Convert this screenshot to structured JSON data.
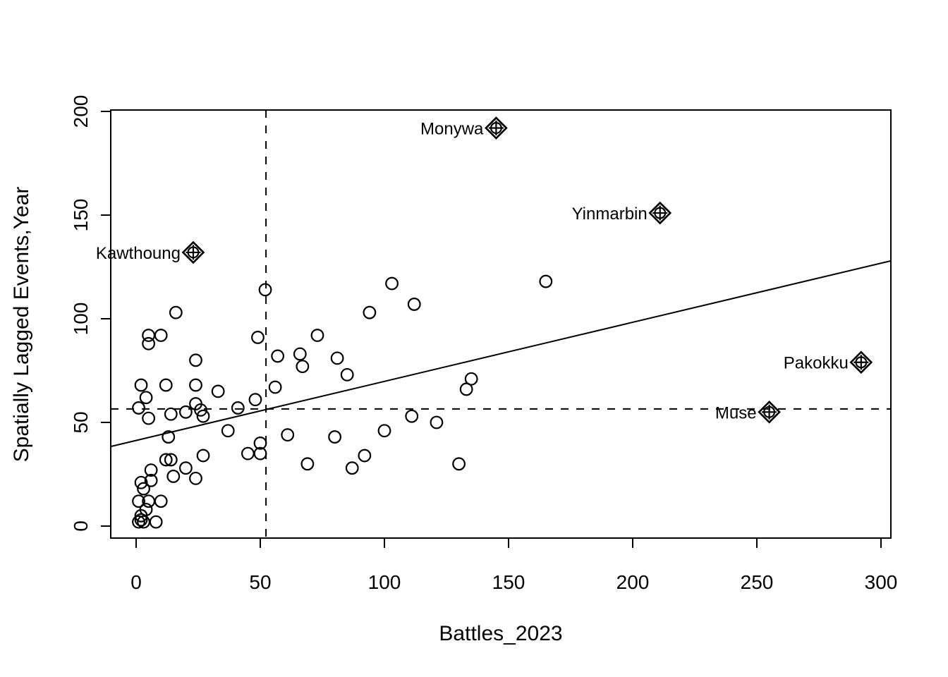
{
  "chart_data": {
    "type": "scatter",
    "title": "",
    "xlabel": "Battles_2023",
    "ylabel": "Spatially Lagged Events,Year",
    "xlim": [
      -10.2,
      304
    ],
    "ylim": [
      -5.8,
      200.7
    ],
    "x_ticks": [
      0,
      50,
      100,
      150,
      200,
      250,
      300
    ],
    "y_ticks": [
      0,
      50,
      100,
      150,
      200
    ],
    "grid": false,
    "legend": "none",
    "mean_x": 52.3,
    "mean_y": 56.5,
    "mean_line_style": "dashed",
    "regression_line": {
      "slope": 0.285,
      "intercept": 41.3,
      "style": "solid"
    },
    "marker": "open-circle",
    "influence_marker": "diamond-circle-plus",
    "colors": {
      "foreground": "#000000",
      "background": "#ffffff"
    },
    "points": [
      [
        16,
        103
      ],
      [
        5,
        92
      ],
      [
        5,
        88
      ],
      [
        10,
        92
      ],
      [
        24,
        80
      ],
      [
        49,
        91
      ],
      [
        52,
        114
      ],
      [
        2,
        68
      ],
      [
        12,
        68
      ],
      [
        24,
        68
      ],
      [
        33,
        65
      ],
      [
        56,
        67
      ],
      [
        4,
        62
      ],
      [
        48,
        61
      ],
      [
        1,
        57
      ],
      [
        41,
        57
      ],
      [
        20,
        55
      ],
      [
        24,
        59
      ],
      [
        26,
        56
      ],
      [
        27,
        53
      ],
      [
        14,
        54
      ],
      [
        5,
        52
      ],
      [
        57,
        82
      ],
      [
        66,
        83
      ],
      [
        67,
        77
      ],
      [
        81,
        81
      ],
      [
        85,
        73
      ],
      [
        73,
        92
      ],
      [
        94,
        103
      ],
      [
        103,
        117
      ],
      [
        112,
        107
      ],
      [
        165,
        118
      ],
      [
        135,
        71
      ],
      [
        133,
        66
      ],
      [
        111,
        53
      ],
      [
        121,
        50
      ],
      [
        100,
        46
      ],
      [
        61,
        44
      ],
      [
        80,
        43
      ],
      [
        92,
        34
      ],
      [
        69,
        30
      ],
      [
        87,
        28
      ],
      [
        130,
        30
      ],
      [
        37,
        46
      ],
      [
        13,
        43
      ],
      [
        45,
        35
      ],
      [
        50,
        40
      ],
      [
        50,
        35
      ],
      [
        27,
        34
      ],
      [
        12,
        32
      ],
      [
        14,
        32
      ],
      [
        6,
        27
      ],
      [
        20,
        28
      ],
      [
        15,
        24
      ],
      [
        24,
        23
      ],
      [
        2,
        21
      ],
      [
        6,
        22
      ],
      [
        3,
        18
      ],
      [
        1,
        12
      ],
      [
        5,
        12
      ],
      [
        10,
        12
      ],
      [
        4,
        8
      ],
      [
        2,
        5
      ],
      [
        1,
        2
      ],
      [
        3,
        2
      ],
      [
        2,
        3
      ],
      [
        8,
        2
      ]
    ],
    "labeled_points": [
      {
        "name": "Monywa",
        "x": 145,
        "y": 192
      },
      {
        "name": "Yinmarbin",
        "x": 211,
        "y": 151
      },
      {
        "name": "Kawthoung",
        "x": 23,
        "y": 132
      },
      {
        "name": "Pakokku",
        "x": 292,
        "y": 79
      },
      {
        "name": "Muse",
        "x": 255,
        "y": 55
      }
    ]
  }
}
